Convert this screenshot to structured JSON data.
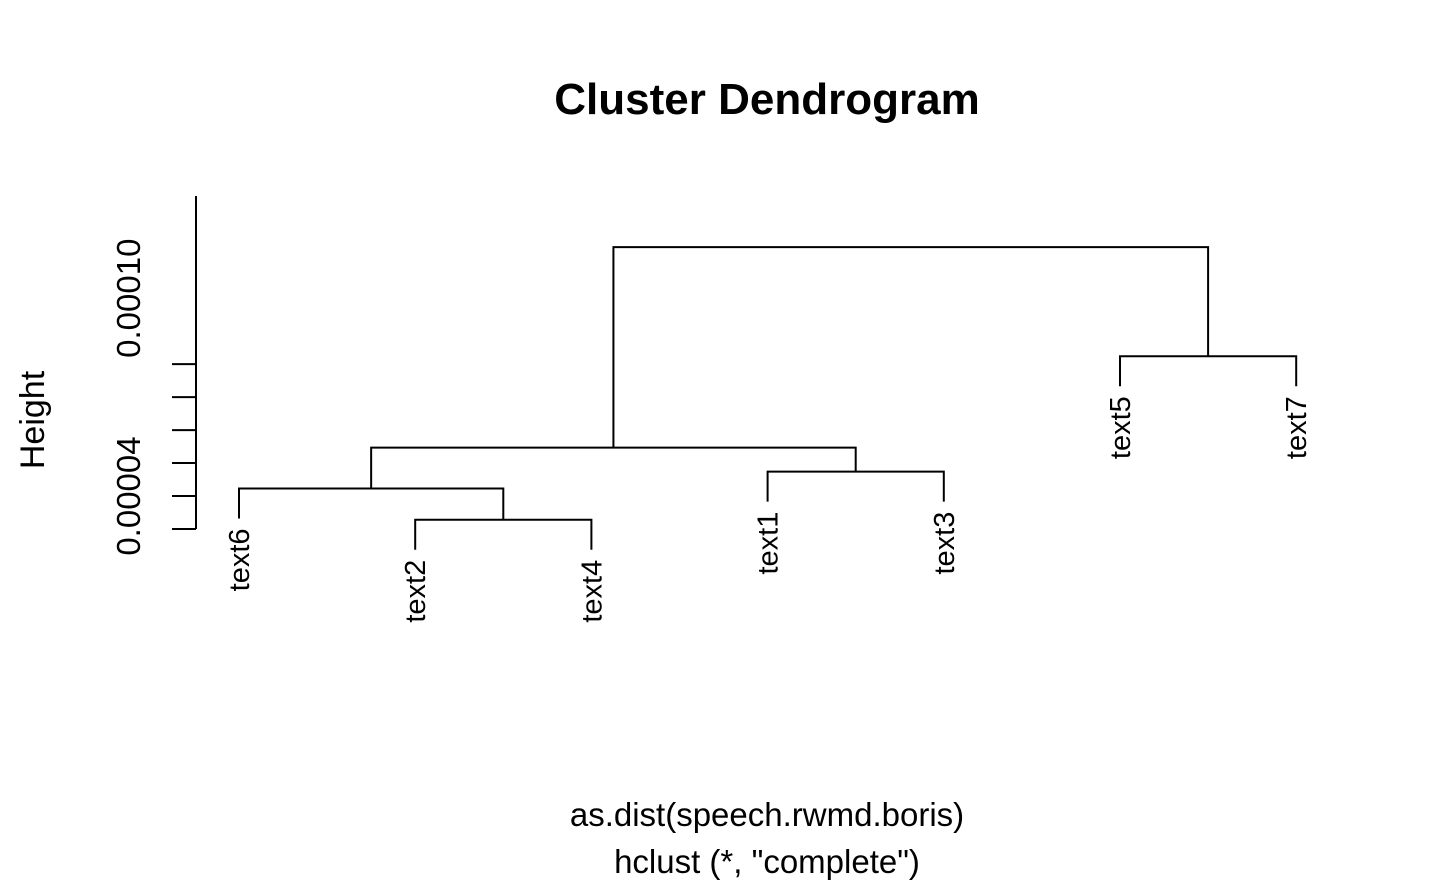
{
  "chart_data": {
    "type": "dendrogram",
    "title": "Cluster Dendrogram",
    "xlabel": "as.dist(speech.rwmd.boris)",
    "sub": "hclust (*, \"complete\")",
    "ylabel": "Height",
    "leaf_order": [
      "text6",
      "text2",
      "text4",
      "text1",
      "text3",
      "text5",
      "text7"
    ],
    "ylim": [
      3e-05,
      0.000131
    ],
    "y_ticks": [
      3e-05,
      4e-05,
      5e-05,
      6e-05,
      7e-05,
      8e-05
    ],
    "y_tick_labels": [
      {
        "value": 4e-05,
        "text": "0.00004"
      },
      {
        "value": 0.0001,
        "text": "0.00010"
      }
    ],
    "merges": [
      {
        "a": "text2",
        "b": "text4",
        "height": 3.28e-05
      },
      {
        "a": "text1",
        "b": "text3",
        "height": 4.74e-05
      },
      {
        "a": "text6",
        "b": "(text2,text4)",
        "height": 4.23e-05
      },
      {
        "a": "text5",
        "b": "text7",
        "height": 8.24e-05
      },
      {
        "a": "(text6,(text2,text4))",
        "b": "(text1,text3)",
        "height": 5.47e-05
      },
      {
        "a": "((text6,(text2,text4)),(text1,text3))",
        "b": "(text5,text7)",
        "height": 0.0001155
      }
    ]
  }
}
